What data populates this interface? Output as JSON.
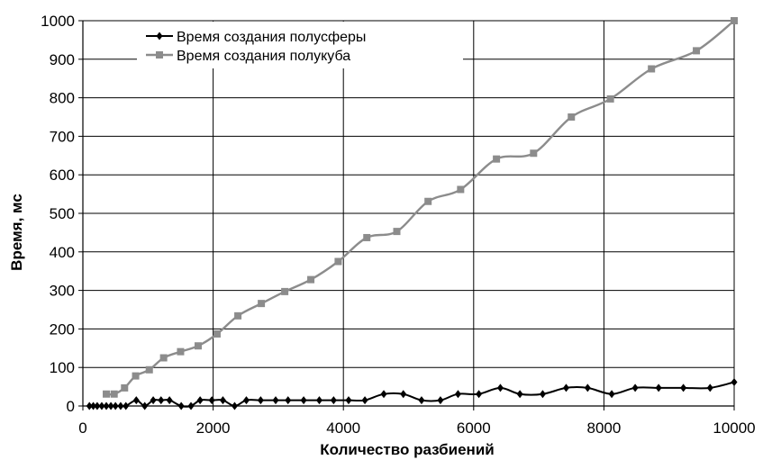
{
  "chart_data": {
    "type": "line",
    "title": "",
    "xlabel": "Количество разбиений",
    "ylabel": "Время, мс",
    "xlim": [
      0,
      10000
    ],
    "ylim": [
      0,
      1000
    ],
    "xticks": [
      "0",
      "2000",
      "4000",
      "6000",
      "8000",
      "10000"
    ],
    "yticks": [
      "0",
      "100",
      "200",
      "300",
      "400",
      "500",
      "600",
      "700",
      "800",
      "900",
      "1000"
    ],
    "grid": true,
    "legend_position": "top-left",
    "series": [
      {
        "name": "Время создания полусферы",
        "marker": "diamond",
        "color": "#000000",
        "points": [
          [
            100,
            0
          ],
          [
            160,
            0
          ],
          [
            220,
            0
          ],
          [
            290,
            0
          ],
          [
            360,
            0
          ],
          [
            430,
            0
          ],
          [
            500,
            0
          ],
          [
            580,
            0
          ],
          [
            660,
            0
          ],
          [
            820,
            15
          ],
          [
            950,
            0
          ],
          [
            1080,
            15
          ],
          [
            1200,
            15
          ],
          [
            1330,
            15
          ],
          [
            1510,
            0
          ],
          [
            1660,
            0
          ],
          [
            1800,
            15
          ],
          [
            1980,
            15
          ],
          [
            2150,
            15
          ],
          [
            2330,
            0
          ],
          [
            2510,
            15
          ],
          [
            2730,
            15
          ],
          [
            2960,
            15
          ],
          [
            3150,
            15
          ],
          [
            3390,
            15
          ],
          [
            3630,
            15
          ],
          [
            3850,
            15
          ],
          [
            4080,
            15
          ],
          [
            4330,
            15
          ],
          [
            4620,
            31
          ],
          [
            4920,
            31
          ],
          [
            5200,
            15
          ],
          [
            5490,
            15
          ],
          [
            5760,
            31
          ],
          [
            6080,
            31
          ],
          [
            6410,
            47
          ],
          [
            6710,
            31
          ],
          [
            7060,
            31
          ],
          [
            7420,
            47
          ],
          [
            7750,
            47
          ],
          [
            8120,
            31
          ],
          [
            8480,
            47
          ],
          [
            8840,
            47
          ],
          [
            9220,
            47
          ],
          [
            9630,
            47
          ],
          [
            10000,
            62
          ]
        ]
      },
      {
        "name": "Время создания полукуба",
        "marker": "square",
        "color": "#8c8c8c",
        "points": [
          [
            360,
            31
          ],
          [
            480,
            31
          ],
          [
            640,
            47
          ],
          [
            810,
            78
          ],
          [
            1020,
            94
          ],
          [
            1240,
            125
          ],
          [
            1500,
            141
          ],
          [
            1770,
            156
          ],
          [
            2060,
            187
          ],
          [
            2380,
            234
          ],
          [
            2740,
            266
          ],
          [
            3100,
            297
          ],
          [
            3500,
            328
          ],
          [
            3920,
            375
          ],
          [
            4360,
            437
          ],
          [
            4820,
            453
          ],
          [
            5300,
            531
          ],
          [
            5800,
            562
          ],
          [
            6350,
            641
          ],
          [
            6920,
            656
          ],
          [
            7500,
            750
          ],
          [
            8100,
            797
          ],
          [
            8730,
            875
          ],
          [
            9420,
            922
          ],
          [
            10000,
            1000
          ]
        ]
      }
    ]
  }
}
